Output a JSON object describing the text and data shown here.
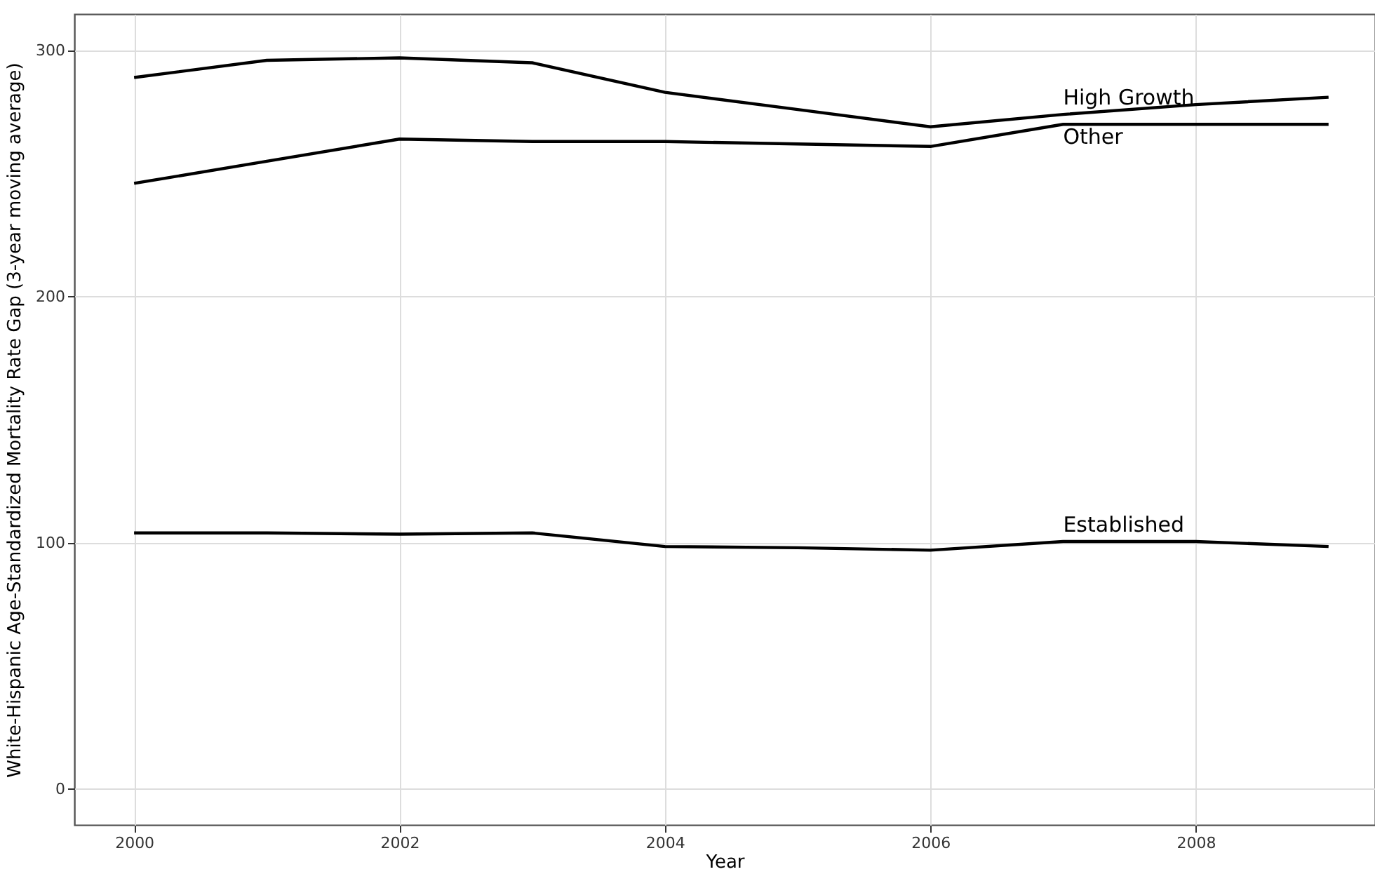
{
  "chart_data": {
    "type": "line",
    "xlabel": "Year",
    "ylabel": "White-Hispanic Age-Standardized Mortality Rate Gap (3-year moving average)",
    "x": [
      2000,
      2001,
      2002,
      2003,
      2004,
      2005,
      2006,
      2007,
      2008,
      2009
    ],
    "series": [
      {
        "name": "High Growth",
        "color": "#000000",
        "values": [
          289,
          296,
          297,
          295,
          283,
          276,
          269,
          274,
          278,
          281
        ]
      },
      {
        "name": "Other",
        "color": "#000000",
        "values": [
          246,
          255,
          264,
          263,
          263,
          262,
          261,
          270,
          270,
          270
        ]
      },
      {
        "name": "Established",
        "color": "#000000",
        "values": [
          104,
          104,
          103.5,
          104,
          98.5,
          98,
          97,
          100.5,
          100.5,
          98.5
        ]
      }
    ],
    "xlim": [
      1999.55,
      2009.35
    ],
    "xticks": [
      2000,
      2002,
      2004,
      2006,
      2008
    ],
    "ylim": [
      -14.6,
      314.8
    ],
    "yticks": [
      0,
      100,
      200,
      300
    ],
    "grid": true,
    "marker": "none",
    "line_style": "solid"
  }
}
